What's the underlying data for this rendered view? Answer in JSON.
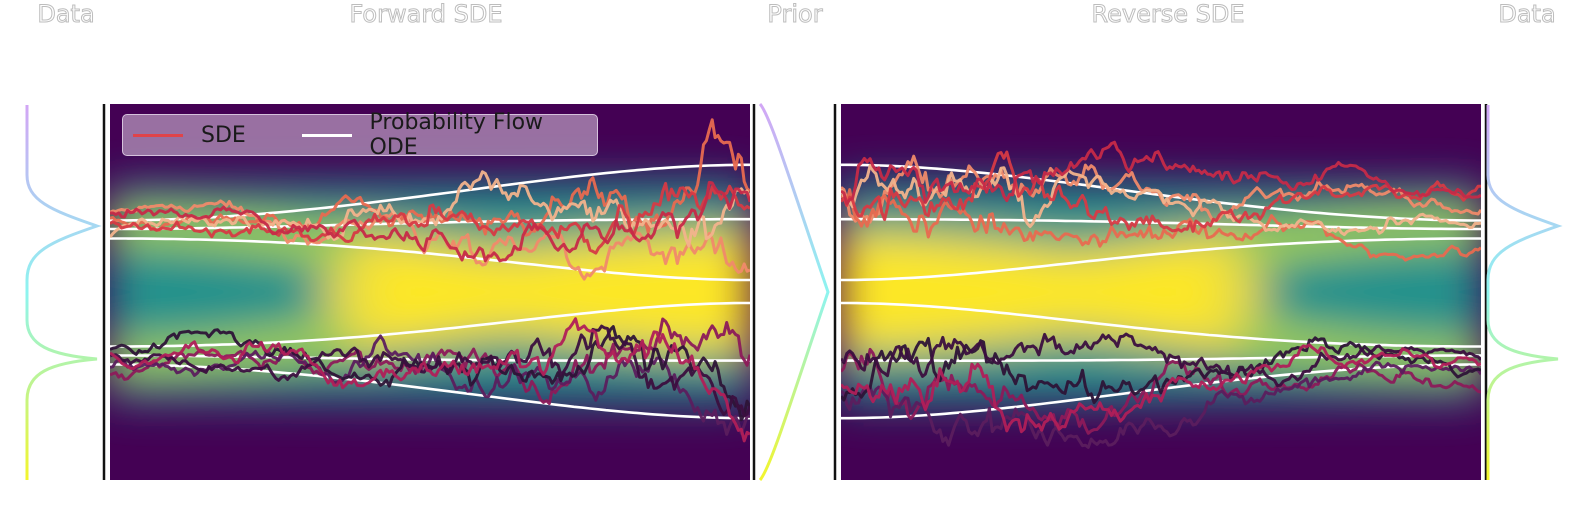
{
  "titles": {
    "data_left": "Data",
    "forward": "Forward SDE",
    "prior": "Prior",
    "reverse": "Reverse SDE",
    "data_right": "Data"
  },
  "legend": {
    "sde_label": "SDE",
    "ode_label": "Probability Flow ODE",
    "sde_color": "#e0434a",
    "ode_color": "#ffffff"
  },
  "colors": {
    "background_low": "#440154",
    "background_mid": "#21918c",
    "background_high": "#fde725",
    "ode_line": "#ffffff"
  },
  "chart_data": {
    "type": "line",
    "colormap": "viridis",
    "data_modes": [
      -1.0,
      1.0
    ],
    "panels": [
      "forward",
      "reverse"
    ],
    "series": [
      {
        "name": "SDE",
        "color": "#e0434a"
      },
      {
        "name": "Probability Flow ODE",
        "color": "#ffffff"
      }
    ],
    "sde_path_colors": [
      "#f08a6a",
      "#e86a50",
      "#f2b38c",
      "#d63a45",
      "#c62a48",
      "#8c1a5a",
      "#5b1d5e",
      "#2d1437",
      "#3b0f3f",
      "#b01f58"
    ]
  }
}
